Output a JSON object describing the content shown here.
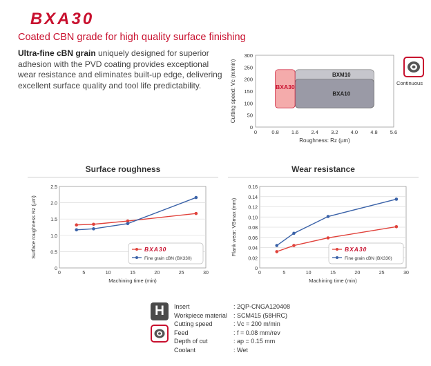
{
  "brand": {
    "logo_text": "BXA30"
  },
  "header": {
    "subtitle": "Coated CBN grade for high quality surface finishing",
    "desc_bold": "Ultra-fine cBN grain",
    "desc_rest": " uniquely designed for superior adhesion with the PVD coating provides exceptional wear resistance and eliminates built-up edge, delivering excellent surface quality and tool life predictability."
  },
  "continuous_label": "Continuous",
  "colors": {
    "brand_red": "#c8102e",
    "series_red": "#e0413a",
    "series_blue": "#3a62a8"
  },
  "chart_data": [
    {
      "type": "area",
      "title": "",
      "xlabel": "Roughness: Rz (µm)",
      "ylabel": "Cutting speed: Vc (m/min)",
      "xlim": [
        0,
        5.6
      ],
      "ylim": [
        0,
        300
      ],
      "xticks": [
        "0",
        "0.8",
        "1.6",
        "2.4",
        "3.2",
        "4.0",
        "4.8",
        "5.6"
      ],
      "yticks": [
        "0",
        "50",
        "100",
        "150",
        "200",
        "250",
        "300"
      ],
      "regions": [
        {
          "name": "BXM10",
          "x": [
            1.6,
            4.8
          ],
          "y": [
            80,
            240
          ],
          "color": "#c6c6cc"
        },
        {
          "name": "BXA10",
          "x": [
            1.6,
            4.8
          ],
          "y": [
            80,
            200
          ],
          "color": "#9a9aa6"
        },
        {
          "name": "BXA30",
          "x": [
            0.8,
            1.6
          ],
          "y": [
            80,
            240
          ],
          "color": "#f08f8f"
        }
      ]
    },
    {
      "type": "line",
      "title": "Surface roughness",
      "xlabel": "Machining time (min)",
      "ylabel": "Surface roughness Rz (µm)",
      "xlim": [
        0,
        30
      ],
      "ylim": [
        0,
        2.5
      ],
      "xticks": [
        "0",
        "5",
        "10",
        "15",
        "20",
        "25",
        "30"
      ],
      "yticks": [
        "0",
        "0.5",
        "1.0",
        "1.5",
        "2.0",
        "2.5"
      ],
      "series": [
        {
          "name": "BXA30",
          "x": [
            3.5,
            7,
            14,
            28
          ],
          "values": [
            1.32,
            1.34,
            1.44,
            1.67
          ],
          "color": "#e0413a"
        },
        {
          "name": "Fine grain cBN (BX330)",
          "x": [
            3.5,
            7,
            14,
            28
          ],
          "values": [
            1.17,
            1.2,
            1.36,
            2.16
          ],
          "color": "#3a62a8"
        }
      ]
    },
    {
      "type": "line",
      "title": "Wear resistance",
      "xlabel": "Machining time (min)",
      "ylabel": "Flank wear: VBmax (mm)",
      "xlim": [
        0,
        30
      ],
      "ylim": [
        0,
        0.16
      ],
      "xticks": [
        "0",
        "5",
        "10",
        "15",
        "20",
        "25",
        "30"
      ],
      "yticks": [
        "0",
        "0.02",
        "0.04",
        "0.06",
        "0.08",
        "0.10",
        "0.12",
        "0.14",
        "0.16"
      ],
      "series": [
        {
          "name": "BXA30",
          "x": [
            3.5,
            7,
            14,
            28
          ],
          "values": [
            0.032,
            0.044,
            0.059,
            0.081
          ],
          "color": "#e0413a"
        },
        {
          "name": "Fine grain cBN (BX330)",
          "x": [
            3.5,
            7,
            14,
            28
          ],
          "values": [
            0.044,
            0.068,
            0.101,
            0.135
          ],
          "color": "#3a62a8"
        }
      ]
    }
  ],
  "conditions": [
    {
      "k": "Insert",
      "v": ": 2QP-CNGA120408"
    },
    {
      "k": "Workpiece material",
      "v": ": SCM415 (58HRC)"
    },
    {
      "k": "Cutting speed",
      "v": ": Vc = 200 m/min"
    },
    {
      "k": "Feed",
      "v": ": f = 0.08 mm/rev"
    },
    {
      "k": "Depth of cut",
      "v": ": ap = 0.15 mm"
    },
    {
      "k": "Coolant",
      "v": ": Wet"
    }
  ],
  "icons": {
    "insert": "H",
    "feed": "continuous-cut-icon"
  }
}
